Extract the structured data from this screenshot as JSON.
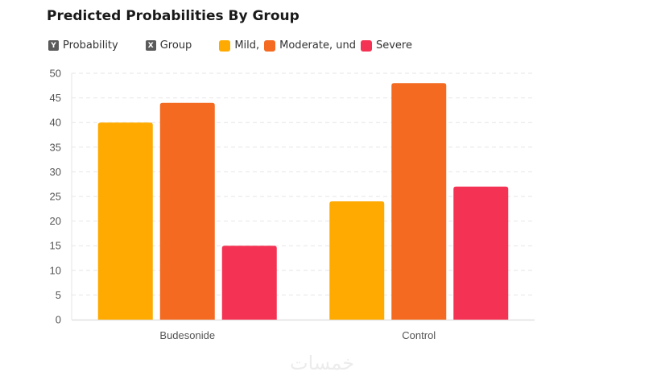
{
  "chart_data": {
    "type": "bar",
    "title": "Predicted Probabilities By Group",
    "xlabel": "Group",
    "ylabel": "Probability",
    "categories": [
      "Budesonide",
      "Control"
    ],
    "series": [
      {
        "name": "Mild,",
        "color": "#FFAA00",
        "values": [
          40,
          24
        ]
      },
      {
        "name": "Moderate, und",
        "color": "#F46A21",
        "values": [
          44,
          48
        ]
      },
      {
        "name": "Severe",
        "color": "#F43354",
        "values": [
          15,
          27
        ]
      }
    ],
    "ylim": [
      0,
      50
    ],
    "yticks": [
      0,
      5,
      10,
      15,
      20,
      25,
      30,
      35,
      40,
      45,
      50
    ],
    "grid": true,
    "legend_position": "top-left"
  },
  "legend": {
    "y_badge": "Y",
    "y_label": "Probability",
    "x_badge": "X",
    "x_label": "Group"
  },
  "watermark": "خمسات"
}
